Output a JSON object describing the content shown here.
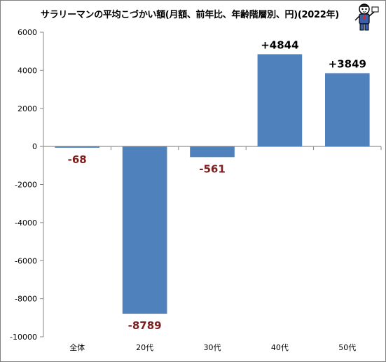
{
  "chart_data": {
    "type": "bar",
    "title": "サラリーマンの平均こづかい額(月額、前年比、年齢階層別、円)(2022年)",
    "categories": [
      "全体",
      "20代",
      "30代",
      "40代",
      "50代"
    ],
    "values": [
      -68,
      -8789,
      -561,
      4844,
      3849
    ],
    "data_labels": [
      "-68",
      "-8789",
      "-561",
      "+4844",
      "+3849"
    ],
    "ylim": [
      -10000,
      6000
    ],
    "yticks": [
      6000,
      4000,
      2000,
      0,
      -2000,
      -4000,
      -6000,
      -8000,
      -10000
    ],
    "ytick_labels": [
      "6000",
      "4000",
      "2000",
      "0",
      "-2000",
      "-4000",
      "-6000",
      "-8000",
      "-10000"
    ],
    "xlabel": "",
    "ylabel": "",
    "grid": false,
    "legend": "none",
    "colors": {
      "bar": "#4f81bd",
      "negative_label": "#7f1d1d",
      "positive_label": "#000000",
      "axis": "#868686"
    }
  },
  "mascot": {
    "icon": "mascot-icon"
  }
}
